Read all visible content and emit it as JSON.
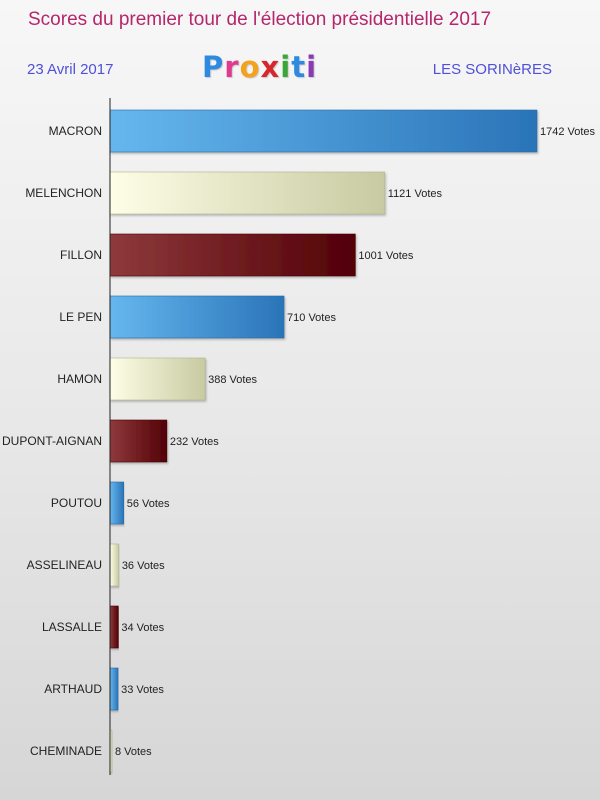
{
  "header": {
    "title": "Scores du premier tour de l'élection présidentielle 2017",
    "date": "23 Avril 2017",
    "place": "LES SORINèRES",
    "logo_letters": [
      {
        "ch": "P",
        "color": "#2d8ae0"
      },
      {
        "ch": "r",
        "color": "#e03a8e"
      },
      {
        "ch": "o",
        "color": "#f2a21d"
      },
      {
        "ch": "x",
        "color": "#d8262e"
      },
      {
        "ch": "i",
        "color": "#3aa63a"
      },
      {
        "ch": "t",
        "color": "#2d8ae0"
      },
      {
        "ch": "i",
        "color": "#8a3ab4"
      }
    ]
  },
  "chart_data": {
    "type": "bar",
    "orientation": "horizontal",
    "categories": [
      "MACRON",
      "MELENCHON",
      "FILLON",
      "LE PEN",
      "HAMON",
      "DUPONT-AIGNAN",
      "POUTOU",
      "ASSELINEAU",
      "LASSALLE",
      "ARTHAUD",
      "CHEMINADE"
    ],
    "values": [
      1742,
      1121,
      1001,
      710,
      388,
      232,
      56,
      36,
      34,
      33,
      8
    ],
    "value_labels": [
      "1742 Votes",
      "1121 Votes",
      "1001 Votes",
      "710 Votes",
      "388 Votes",
      "232 Votes",
      "56 Votes",
      "36 Votes",
      "34 Votes",
      "33 Votes",
      "8 Votes"
    ],
    "title": "",
    "xlabel": "",
    "ylabel": "",
    "xlim": [
      0,
      1742
    ],
    "grid": false,
    "colors": [
      "#3a8fd6",
      "#e9ebc4",
      "#6e1418"
    ]
  }
}
